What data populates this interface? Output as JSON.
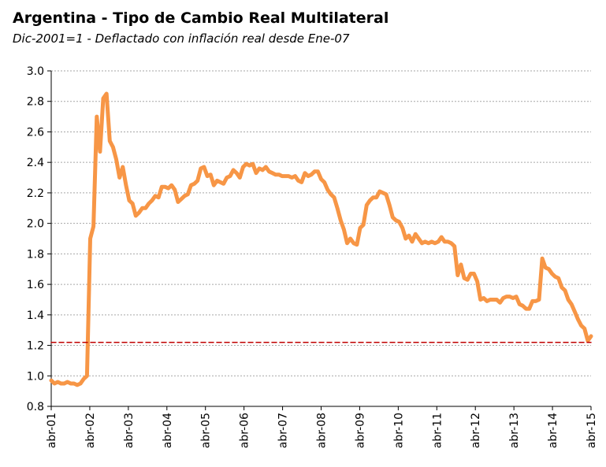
{
  "chart_data": {
    "type": "line",
    "title": "Argentina - Tipo de Cambio Real Multilateral",
    "subtitle": "Dic-2001=1 - Deflactado con inflación real desde Ene-07",
    "xlabel": "",
    "ylabel": "",
    "ylim": [
      0.8,
      3.0
    ],
    "yticks": [
      "0.8",
      "1.0",
      "1.2",
      "1.4",
      "1.6",
      "1.8",
      "2.0",
      "2.2",
      "2.4",
      "2.6",
      "2.8",
      "3.0"
    ],
    "x_start": "abr-01",
    "x_end": "abr-15",
    "xticks": [
      "abr-01",
      "abr-02",
      "abr-03",
      "abr-04",
      "abr-05",
      "abr-06",
      "abr-07",
      "abr-08",
      "abr-09",
      "abr-10",
      "abr-11",
      "abr-12",
      "abr-13",
      "abr-14",
      "abr-15"
    ],
    "grid": "horizontal dashed",
    "series": [
      {
        "color": "#F79646",
        "values": [
          0.97,
          0.95,
          0.96,
          0.95,
          0.95,
          0.96,
          0.95,
          0.95,
          0.94,
          0.95,
          0.98,
          1.0,
          1.9,
          1.98,
          2.7,
          2.47,
          2.82,
          2.85,
          2.54,
          2.5,
          2.42,
          2.3,
          2.37,
          2.25,
          2.15,
          2.13,
          2.05,
          2.07,
          2.1,
          2.1,
          2.13,
          2.15,
          2.18,
          2.17,
          2.24,
          2.24,
          2.23,
          2.25,
          2.22,
          2.14,
          2.16,
          2.18,
          2.19,
          2.25,
          2.26,
          2.28,
          2.36,
          2.37,
          2.31,
          2.32,
          2.25,
          2.28,
          2.27,
          2.26,
          2.3,
          2.31,
          2.35,
          2.33,
          2.3,
          2.37,
          2.39,
          2.38,
          2.39,
          2.33,
          2.36,
          2.35,
          2.37,
          2.34,
          2.33,
          2.32,
          2.32,
          2.31,
          2.31,
          2.31,
          2.3,
          2.31,
          2.28,
          2.27,
          2.33,
          2.31,
          2.32,
          2.34,
          2.34,
          2.29,
          2.27,
          2.22,
          2.19,
          2.17,
          2.1,
          2.02,
          1.96,
          1.87,
          1.9,
          1.87,
          1.86,
          1.97,
          1.99,
          2.12,
          2.15,
          2.17,
          2.17,
          2.21,
          2.2,
          2.19,
          2.12,
          2.04,
          2.02,
          2.01,
          1.97,
          1.9,
          1.92,
          1.88,
          1.93,
          1.9,
          1.87,
          1.88,
          1.87,
          1.88,
          1.87,
          1.88,
          1.91,
          1.88,
          1.88,
          1.87,
          1.85,
          1.66,
          1.73,
          1.64,
          1.63,
          1.67,
          1.67,
          1.62,
          1.5,
          1.51,
          1.49,
          1.5,
          1.5,
          1.5,
          1.48,
          1.51,
          1.52,
          1.52,
          1.51,
          1.52,
          1.47,
          1.46,
          1.44,
          1.44,
          1.49,
          1.49,
          1.5,
          1.77,
          1.71,
          1.7,
          1.67,
          1.65,
          1.64,
          1.58,
          1.56,
          1.5,
          1.47,
          1.42,
          1.37,
          1.33,
          1.31,
          1.23,
          1.26
        ]
      },
      {
        "color": "#C00000",
        "dashed": true,
        "values": [
          1.22,
          1.22
        ]
      }
    ]
  }
}
